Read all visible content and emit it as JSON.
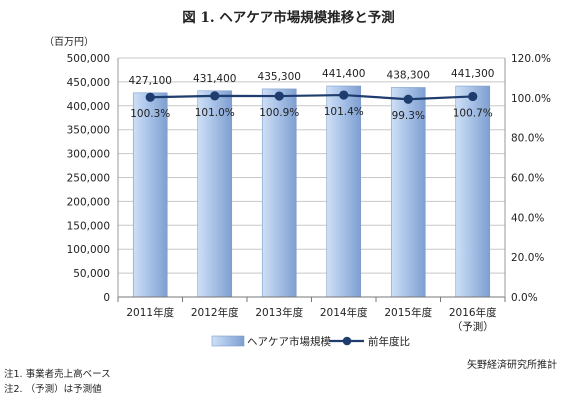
{
  "title": "図 1.  ヘアケア市場規模推移と予測",
  "unit_label": "（百万円）",
  "notes": [
    "注1.  事業者売上高ベース",
    "注2.  （予測）は予測値"
  ],
  "source": "矢野経済研究所推計",
  "colors": {
    "bar_fill": "#a9c3e8",
    "bar_edge": "#7c9ccc",
    "line": "#1f3c6e",
    "grid": "#c8c8c8"
  },
  "chart_data": {
    "type": "bar",
    "categories": [
      "2011年度",
      "2012年度",
      "2013年度",
      "2014年度",
      "2015年度",
      "2016年度"
    ],
    "category_sublabels": [
      "",
      "",
      "",
      "",
      "",
      "（予測）"
    ],
    "series": [
      {
        "name": "ヘアケア市場規模",
        "type": "bar",
        "axis": "left",
        "values": [
          427100,
          431400,
          435300,
          441400,
          438300,
          441300
        ],
        "labels": [
          "427,100",
          "431,400",
          "435,300",
          "441,400",
          "438,300",
          "441,300"
        ]
      },
      {
        "name": "前年度比",
        "type": "line",
        "axis": "right",
        "values": [
          100.3,
          101.0,
          100.9,
          101.4,
          99.3,
          100.7
        ],
        "labels": [
          "100.3%",
          "101.0%",
          "100.9%",
          "101.4%",
          "99.3%",
          "100.7%"
        ]
      }
    ],
    "y_left": {
      "min": 0,
      "max": 500000,
      "step": 50000,
      "ticks": [
        "0",
        "50,000",
        "100,000",
        "150,000",
        "200,000",
        "250,000",
        "300,000",
        "350,000",
        "400,000",
        "450,000",
        "500,000"
      ]
    },
    "y_right": {
      "min": 0,
      "max": 120,
      "step": 20,
      "ticks": [
        "0.0%",
        "20.0%",
        "40.0%",
        "60.0%",
        "80.0%",
        "100.0%",
        "120.0%"
      ]
    },
    "grid": true,
    "legend_position": "bottom-center"
  }
}
